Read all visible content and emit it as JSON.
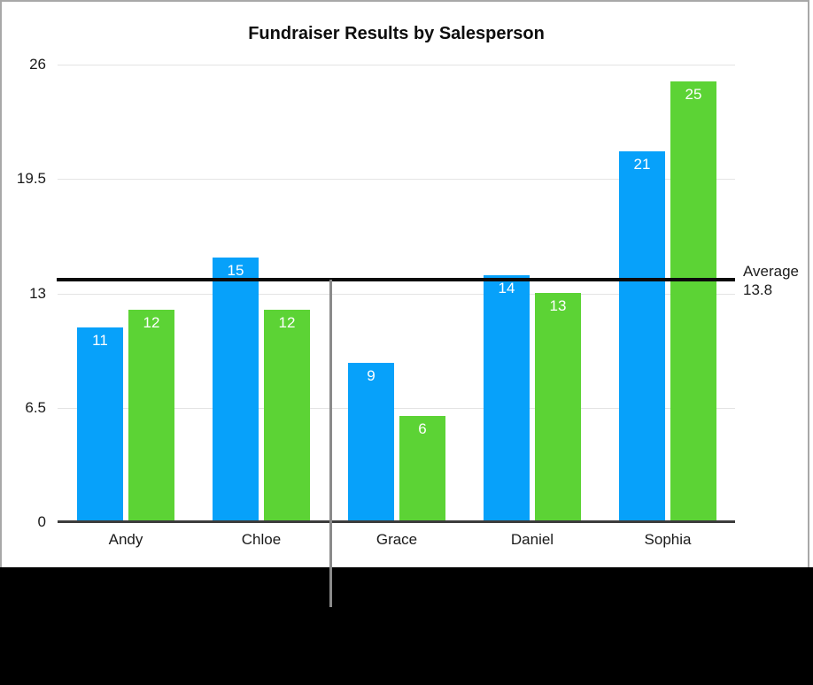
{
  "chart_data": {
    "type": "bar",
    "title": "Fundraiser Results by Salesperson",
    "categories": [
      "Andy",
      "Chloe",
      "Grace",
      "Daniel",
      "Sophia"
    ],
    "series": [
      {
        "name": "blue-series",
        "color": "#07A1FA",
        "values": [
          11,
          15,
          9,
          14,
          21
        ]
      },
      {
        "name": "green-series",
        "color": "#5CD335",
        "values": [
          12,
          12,
          6,
          13,
          25
        ]
      }
    ],
    "y_ticks": [
      26,
      19.5,
      13,
      6.5,
      0
    ],
    "ylim": [
      0,
      26
    ],
    "grid": true,
    "legend": "none",
    "value_labels": "inside-top, white",
    "annotations": {
      "average_line": {
        "value": 13.8,
        "label_line1": "Average",
        "label_line2": "13.8",
        "line_color": "#0b0b0b"
      },
      "pointer_line_color": "#8a8a8a"
    },
    "colors": {
      "gridline": "#e4e4e4",
      "axis": "#3c3c3c",
      "frame_border": "#a8a8a8",
      "letterbox": "#000000"
    }
  }
}
